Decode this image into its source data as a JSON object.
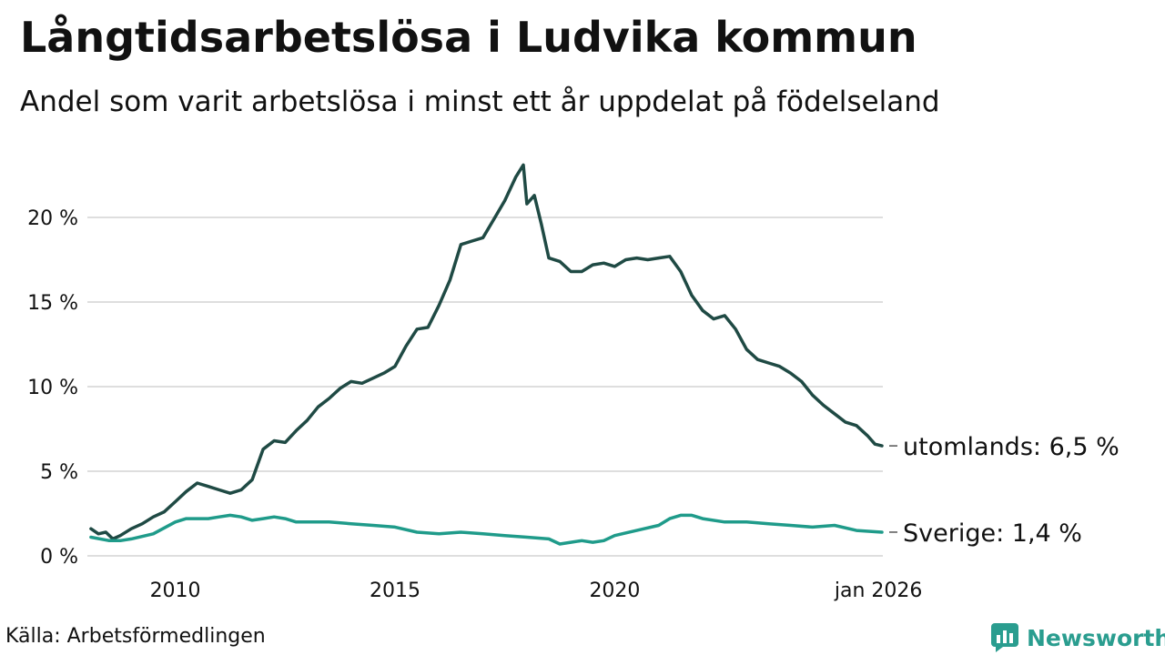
{
  "title": "Långtidsarbetslösa i Ludvika kommun",
  "subtitle": "Andel som varit arbetslösa i minst ett år uppdelat på födelseland",
  "source": "Källa: Arbetsförmedlingen",
  "brand": {
    "name": "Newsworthy",
    "icon": "newsworthy-logo-icon",
    "color": "#2a9d8f"
  },
  "chart_data": {
    "type": "line",
    "x_unit": "year",
    "xlim": [
      2008.0,
      2026.1
    ],
    "ylim": [
      0,
      23.5
    ],
    "y_ticks": [
      {
        "value": 0,
        "label": "0 %"
      },
      {
        "value": 5,
        "label": "5 %"
      },
      {
        "value": 10,
        "label": "10 %"
      },
      {
        "value": 15,
        "label": "15 %"
      },
      {
        "value": 20,
        "label": "20 %"
      }
    ],
    "x_ticks": [
      {
        "value": 2010,
        "label": "2010"
      },
      {
        "value": 2015,
        "label": "2015"
      },
      {
        "value": 2020,
        "label": "2020"
      },
      {
        "value": 2026,
        "label": "jan 2026"
      }
    ],
    "grid": true,
    "series": [
      {
        "name": "utomlands",
        "label": "utomlands: 6,5 %",
        "color": "#1f4a44",
        "x": [
          2008.08,
          2008.25,
          2008.42,
          2008.58,
          2008.75,
          2009.0,
          2009.25,
          2009.5,
          2009.75,
          2010.0,
          2010.25,
          2010.5,
          2010.75,
          2011.0,
          2011.25,
          2011.5,
          2011.75,
          2012.0,
          2012.25,
          2012.5,
          2012.75,
          2013.0,
          2013.25,
          2013.5,
          2013.75,
          2014.0,
          2014.25,
          2014.5,
          2014.75,
          2015.0,
          2015.25,
          2015.5,
          2015.75,
          2016.0,
          2016.25,
          2016.5,
          2016.75,
          2017.0,
          2017.25,
          2017.5,
          2017.75,
          2017.92,
          2018.0,
          2018.17,
          2018.33,
          2018.5,
          2018.75,
          2019.0,
          2019.25,
          2019.5,
          2019.75,
          2020.0,
          2020.25,
          2020.5,
          2020.75,
          2021.0,
          2021.25,
          2021.5,
          2021.75,
          2022.0,
          2022.25,
          2022.5,
          2022.75,
          2023.0,
          2023.25,
          2023.5,
          2023.75,
          2024.0,
          2024.25,
          2024.5,
          2024.75,
          2025.0,
          2025.25,
          2025.5,
          2025.75,
          2025.92,
          2026.08
        ],
        "y": [
          1.6,
          1.3,
          1.4,
          1.0,
          1.2,
          1.6,
          1.9,
          2.3,
          2.6,
          3.2,
          3.8,
          4.3,
          4.1,
          3.9,
          3.7,
          3.9,
          4.5,
          6.3,
          6.8,
          6.7,
          7.4,
          8.0,
          8.8,
          9.3,
          9.9,
          10.3,
          10.2,
          10.5,
          10.8,
          11.2,
          12.4,
          13.4,
          13.5,
          14.8,
          16.3,
          18.4,
          18.6,
          18.8,
          19.9,
          21.0,
          22.4,
          23.1,
          20.8,
          21.3,
          19.6,
          17.6,
          17.4,
          16.8,
          16.8,
          17.2,
          17.3,
          17.1,
          17.5,
          17.6,
          17.5,
          17.6,
          17.7,
          16.8,
          15.4,
          14.5,
          14.0,
          14.2,
          13.4,
          12.2,
          11.6,
          11.4,
          11.2,
          10.8,
          10.3,
          9.5,
          8.9,
          8.4,
          7.9,
          7.7,
          7.1,
          6.6,
          6.5
        ]
      },
      {
        "name": "Sverige",
        "label": "Sverige: 1,4 %",
        "color": "#1f9b8a",
        "x": [
          2008.08,
          2008.5,
          2008.75,
          2009.0,
          2009.5,
          2010.0,
          2010.25,
          2010.5,
          2010.75,
          2011.0,
          2011.25,
          2011.5,
          2011.75,
          2012.0,
          2012.25,
          2012.5,
          2012.75,
          2013.0,
          2013.5,
          2014.0,
          2014.5,
          2015.0,
          2015.5,
          2016.0,
          2016.5,
          2017.0,
          2017.5,
          2018.0,
          2018.5,
          2018.75,
          2019.0,
          2019.25,
          2019.5,
          2019.75,
          2020.0,
          2020.5,
          2021.0,
          2021.25,
          2021.5,
          2021.75,
          2022.0,
          2022.5,
          2023.0,
          2023.5,
          2024.0,
          2024.5,
          2025.0,
          2025.5,
          2026.08
        ],
        "y": [
          1.1,
          0.9,
          0.9,
          1.0,
          1.3,
          2.0,
          2.2,
          2.2,
          2.2,
          2.3,
          2.4,
          2.3,
          2.1,
          2.2,
          2.3,
          2.2,
          2.0,
          2.0,
          2.0,
          1.9,
          1.8,
          1.7,
          1.4,
          1.3,
          1.4,
          1.3,
          1.2,
          1.1,
          1.0,
          0.7,
          0.8,
          0.9,
          0.8,
          0.9,
          1.2,
          1.5,
          1.8,
          2.2,
          2.4,
          2.4,
          2.2,
          2.0,
          2.0,
          1.9,
          1.8,
          1.7,
          1.8,
          1.5,
          1.4
        ]
      }
    ]
  }
}
